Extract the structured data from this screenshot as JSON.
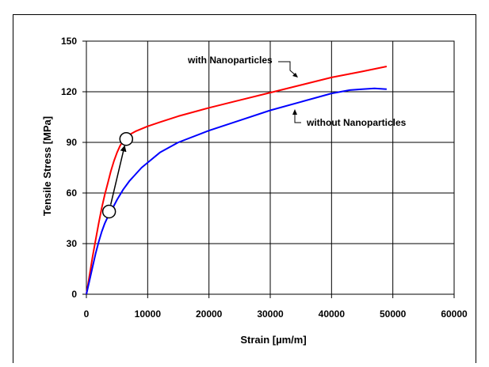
{
  "chart_data": {
    "type": "line",
    "title": "",
    "xlabel": "Strain [µm/m]",
    "ylabel": "Tensile Stress [MPa]",
    "xlim": [
      0,
      60000
    ],
    "ylim": [
      0,
      150
    ],
    "x_ticks": [
      0,
      10000,
      20000,
      30000,
      40000,
      50000,
      60000
    ],
    "y_ticks": [
      0,
      30,
      60,
      90,
      120,
      150
    ],
    "grid": true,
    "legend": "none",
    "series": [
      {
        "name": "with Nanoparticles",
        "color": "#ff0000",
        "x": [
          0,
          500,
          1000,
          1500,
          2000,
          2500,
          3000,
          3500,
          4000,
          4500,
          5000,
          5500,
          6000,
          7000,
          8000,
          10000,
          12000,
          15000,
          20000,
          25000,
          30000,
          35000,
          40000,
          45000,
          49000
        ],
        "y": [
          0,
          11,
          22,
          32,
          42,
          51,
          59,
          66,
          73,
          79,
          84,
          88,
          91,
          94.5,
          96.5,
          99.5,
          102,
          105.5,
          110.5,
          115,
          119.5,
          124,
          128.5,
          132,
          135
        ]
      },
      {
        "name": "without Nanoparticles",
        "color": "#0000ff",
        "x": [
          0,
          500,
          1000,
          1500,
          2000,
          2500,
          3000,
          3500,
          4000,
          5000,
          6000,
          7000,
          8000,
          9000,
          10000,
          12000,
          15000,
          20000,
          25000,
          30000,
          35000,
          40000,
          43000,
          45000,
          47000,
          49000
        ],
        "y": [
          0,
          8,
          16,
          24,
          31,
          37,
          42,
          46,
          49,
          56,
          62,
          67,
          71,
          75,
          78,
          84,
          90,
          97,
          103,
          109,
          114,
          119,
          121,
          121.5,
          122,
          121.5
        ]
      }
    ],
    "annotations": [
      {
        "text": "with Nanoparticles",
        "target_series": "with Nanoparticles",
        "x": 35000,
        "y": 124
      },
      {
        "text": "without Nanoparticles",
        "target_series": "without Nanoparticles",
        "x": 37000,
        "y": 116
      }
    ],
    "markers": [
      {
        "shape": "circle",
        "x": 3700,
        "y": 49
      },
      {
        "shape": "circle",
        "x": 6500,
        "y": 92
      }
    ],
    "arrow": {
      "from": [
        3700,
        49
      ],
      "to": [
        6500,
        92
      ]
    }
  }
}
